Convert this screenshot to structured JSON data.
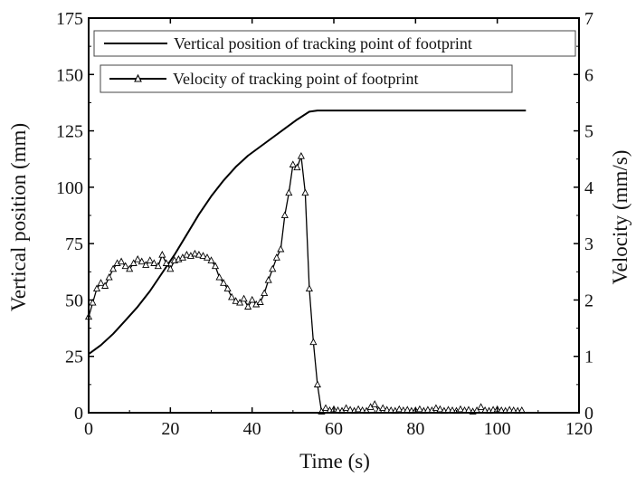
{
  "chart_data": {
    "type": "line",
    "title": "",
    "xlabel": "Time (s)",
    "ylabel": "Vertical position (mm)",
    "y2label": "Velocity (mm/s)",
    "xlim": [
      0,
      120
    ],
    "ylim": [
      0,
      175
    ],
    "y2lim": [
      0,
      7
    ],
    "xticks": [
      "0",
      "20",
      "40",
      "60",
      "80",
      "100",
      "120"
    ],
    "yticks": [
      "0",
      "25",
      "50",
      "75",
      "100",
      "125",
      "150",
      "175"
    ],
    "y2ticks": [
      "0",
      "1",
      "2",
      "3",
      "4",
      "5",
      "6",
      "7"
    ],
    "grid": false,
    "legend_placement": "top-left",
    "series": [
      {
        "name": "Vertical position of tracking point of footprint",
        "axis": "left",
        "marker": "none",
        "color": "#000000",
        "x": [
          0,
          3,
          6,
          9,
          12,
          15,
          18,
          21,
          24,
          27,
          30,
          33,
          36,
          39,
          42,
          45,
          48,
          51,
          54,
          56,
          58,
          60,
          70,
          80,
          90,
          100,
          107
        ],
        "y": [
          26,
          30,
          35,
          41,
          47,
          54,
          62,
          70,
          79,
          88,
          96,
          103,
          109,
          114,
          118,
          122,
          126,
          130,
          133.5,
          134,
          134,
          134,
          134,
          134,
          134,
          134,
          134
        ]
      },
      {
        "name": "Velocity of tracking point of footprint",
        "axis": "right",
        "marker": "triangle",
        "color": "#000000",
        "x": [
          0,
          1,
          2,
          3,
          4,
          5,
          6,
          7,
          8,
          9,
          10,
          11,
          12,
          13,
          14,
          15,
          16,
          17,
          18,
          19,
          20,
          21,
          22,
          23,
          24,
          25,
          26,
          27,
          28,
          29,
          30,
          31,
          32,
          33,
          34,
          35,
          36,
          37,
          38,
          39,
          40,
          41,
          42,
          43,
          44,
          45,
          46,
          47,
          48,
          49,
          50,
          51,
          52,
          53,
          54,
          55,
          56,
          57,
          58,
          59,
          60,
          61,
          62,
          63,
          64,
          65,
          66,
          67,
          68,
          69,
          70,
          71,
          72,
          73,
          74,
          75,
          76,
          77,
          78,
          79,
          80,
          81,
          82,
          83,
          84,
          85,
          86,
          87,
          88,
          89,
          90,
          91,
          92,
          93,
          94,
          95,
          96,
          97,
          98,
          99,
          100,
          101,
          102,
          103,
          104,
          105,
          106
        ],
        "y": [
          1.7,
          1.95,
          2.2,
          2.3,
          2.25,
          2.4,
          2.55,
          2.65,
          2.68,
          2.6,
          2.55,
          2.65,
          2.72,
          2.68,
          2.62,
          2.7,
          2.65,
          2.6,
          2.8,
          2.65,
          2.55,
          2.7,
          2.72,
          2.75,
          2.8,
          2.78,
          2.82,
          2.8,
          2.78,
          2.75,
          2.7,
          2.6,
          2.4,
          2.3,
          2.2,
          2.05,
          1.98,
          1.95,
          2.02,
          1.88,
          2.0,
          1.92,
          1.96,
          2.12,
          2.35,
          2.55,
          2.75,
          2.9,
          3.5,
          3.9,
          4.4,
          4.35,
          4.55,
          3.9,
          2.2,
          1.25,
          0.5,
          0.02,
          0.08,
          0.04,
          0.06,
          0.04,
          0.03,
          0.08,
          0.05,
          0.03,
          0.06,
          0.04,
          0.03,
          0.1,
          0.15,
          0.04,
          0.08,
          0.05,
          0.04,
          0.03,
          0.06,
          0.04,
          0.05,
          0.03,
          0.04,
          0.06,
          0.03,
          0.05,
          0.04,
          0.08,
          0.06,
          0.03,
          0.05,
          0.04,
          0.03,
          0.06,
          0.04,
          0.05,
          0.02,
          0.04,
          0.1,
          0.04,
          0.03,
          0.05,
          0.06,
          0.04,
          0.03,
          0.05,
          0.04,
          0.03,
          0.04
        ]
      }
    ]
  }
}
